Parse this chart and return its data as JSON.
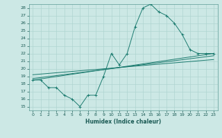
{
  "title": "",
  "xlabel": "Humidex (Indice chaleur)",
  "ylabel": "",
  "bg_color": "#cce8e5",
  "grid_color": "#aed4d0",
  "line_color": "#1a7a6e",
  "xlim": [
    -0.5,
    23.5
  ],
  "ylim": [
    14.5,
    28.5
  ],
  "xticks": [
    0,
    1,
    2,
    3,
    4,
    5,
    6,
    7,
    8,
    9,
    10,
    11,
    12,
    13,
    14,
    15,
    16,
    17,
    18,
    19,
    20,
    21,
    22,
    23
  ],
  "yticks": [
    15,
    16,
    17,
    18,
    19,
    20,
    21,
    22,
    23,
    24,
    25,
    26,
    27,
    28
  ],
  "series1_x": [
    0,
    1,
    2,
    3,
    4,
    5,
    6,
    7,
    8,
    9,
    10,
    11,
    12,
    13,
    14,
    15,
    16,
    17,
    18,
    19,
    20,
    21,
    22,
    23
  ],
  "series1_y": [
    18.5,
    18.5,
    17.5,
    17.5,
    16.5,
    16.0,
    15.0,
    16.5,
    16.5,
    19.0,
    22.0,
    20.5,
    22.0,
    25.5,
    28.0,
    28.5,
    27.5,
    27.0,
    26.0,
    24.5,
    22.5,
    22.0,
    22.0,
    22.0
  ],
  "series2_x": [
    0,
    23
  ],
  "series2_y": [
    18.5,
    22.0
  ],
  "series3_x": [
    0,
    23
  ],
  "series3_y": [
    19.2,
    21.2
  ],
  "series4_x": [
    0,
    23
  ],
  "series4_y": [
    18.7,
    21.7
  ]
}
